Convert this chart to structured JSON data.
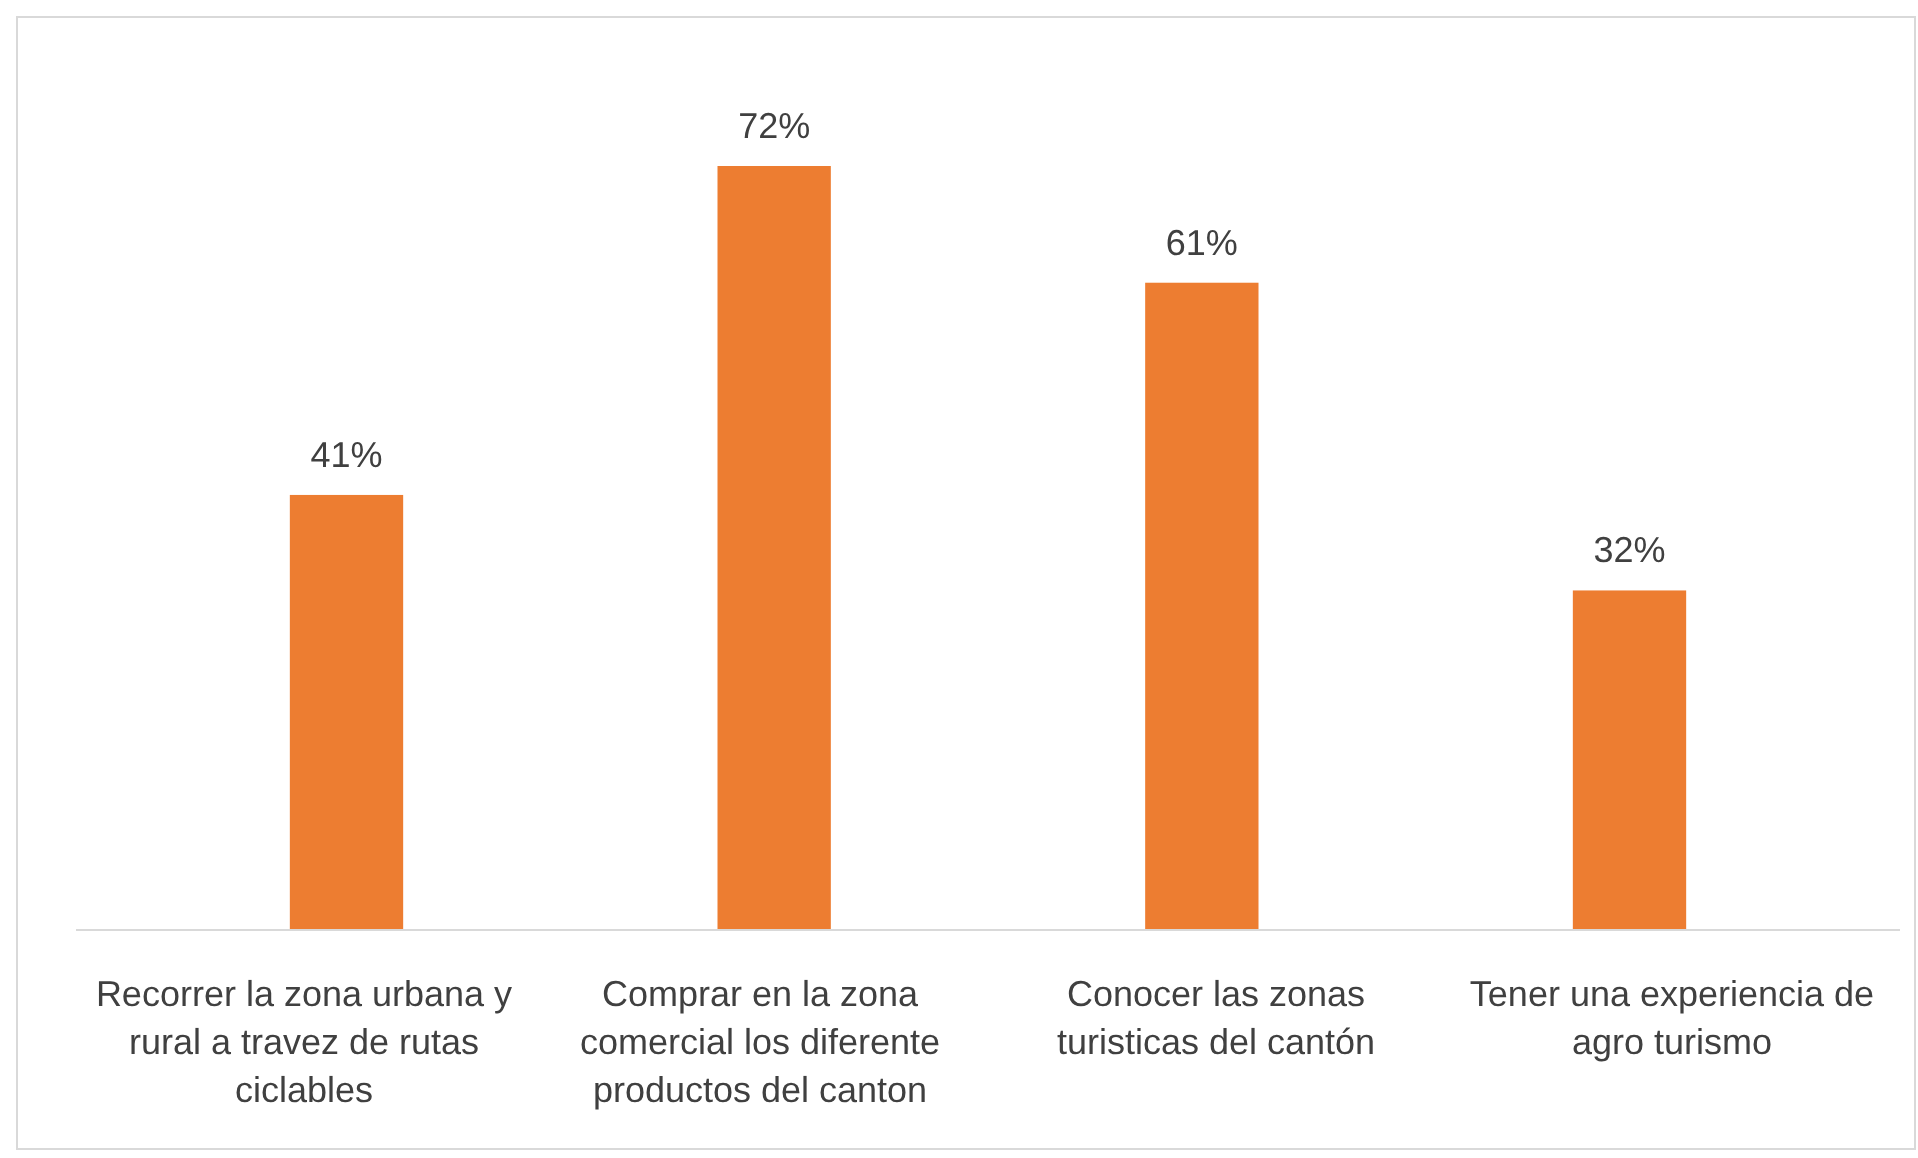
{
  "chart_data": {
    "type": "bar",
    "categories": [
      "Recorrer la zona urbana y rural a travez de rutas ciclables",
      "Comprar en la zona comercial los diferente productos del canton",
      "Conocer las zonas turisticas del cantón",
      "Tener una experiencia de agro turismo"
    ],
    "values": [
      41,
      72,
      61,
      32
    ],
    "color": "#ed7d31",
    "value_labels": [
      "41%",
      "72%",
      "61%",
      "32%"
    ]
  }
}
